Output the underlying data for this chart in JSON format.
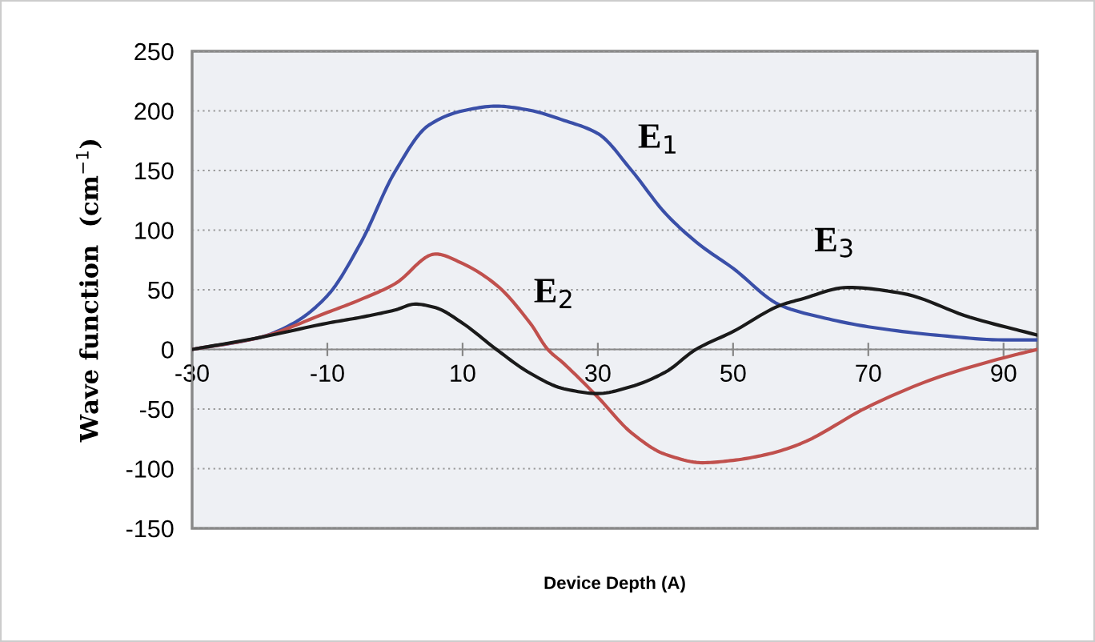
{
  "chart_data": {
    "type": "line",
    "xlabel": "Device Depth (A)",
    "ylabel": "Wave function  (cm$^{−1}$)",
    "xlim": [
      -30,
      95
    ],
    "xticks": [
      -30,
      -10,
      10,
      30,
      50,
      70,
      90
    ],
    "ylim": [
      -150,
      250
    ],
    "yticks": [
      -150,
      -100,
      -50,
      0,
      50,
      100,
      150,
      200,
      250
    ],
    "grid": "y",
    "series": [
      {
        "color": "#3a4fa8",
        "x": [
          -30,
          -20,
          -15,
          -10,
          -5,
          0,
          5,
          10,
          15,
          19.5,
          25,
          30,
          35,
          40,
          45,
          50,
          57,
          63,
          70,
          80,
          90,
          95
        ],
        "values": [
          0,
          10,
          22,
          45,
          90,
          149,
          188,
          200,
          204,
          201,
          192,
          181,
          150,
          114,
          88,
          68,
          37,
          27,
          19,
          12,
          8,
          8
        ]
      },
      {
        "color": "#c0504d",
        "x": [
          -30,
          -20,
          -10,
          -5,
          0,
          6,
          10,
          15,
          20,
          22.6,
          25,
          30,
          35,
          40,
          45.5,
          50,
          55,
          60,
          70,
          80,
          90,
          95
        ],
        "values": [
          0,
          10,
          31,
          42,
          55,
          80,
          72,
          54,
          22,
          0,
          -12,
          -40,
          -70,
          -88,
          -95,
          -93,
          -88,
          -79,
          -48,
          -24,
          -7,
          0
        ]
      },
      {
        "color": "#1a1a1a",
        "x": [
          -30,
          -20,
          -10,
          -5,
          0,
          3,
          6,
          10,
          15,
          20,
          25,
          30,
          35,
          40,
          44.5,
          50,
          57,
          60,
          67,
          75,
          85,
          95
        ],
        "values": [
          0,
          10,
          22,
          27,
          33,
          38,
          35,
          22,
          0,
          -20,
          -33,
          -37,
          -31,
          -19,
          0,
          15,
          37,
          42,
          52,
          47,
          27,
          12
        ]
      }
    ],
    "annotations": [
      {
        "text": "E$_{1}$",
        "x": 35,
        "y": 150
      },
      {
        "text": "E$_{2}$",
        "x": 15,
        "y": 54
      },
      {
        "text": "E$_{3}$",
        "x": 67,
        "y": 52
      }
    ]
  }
}
